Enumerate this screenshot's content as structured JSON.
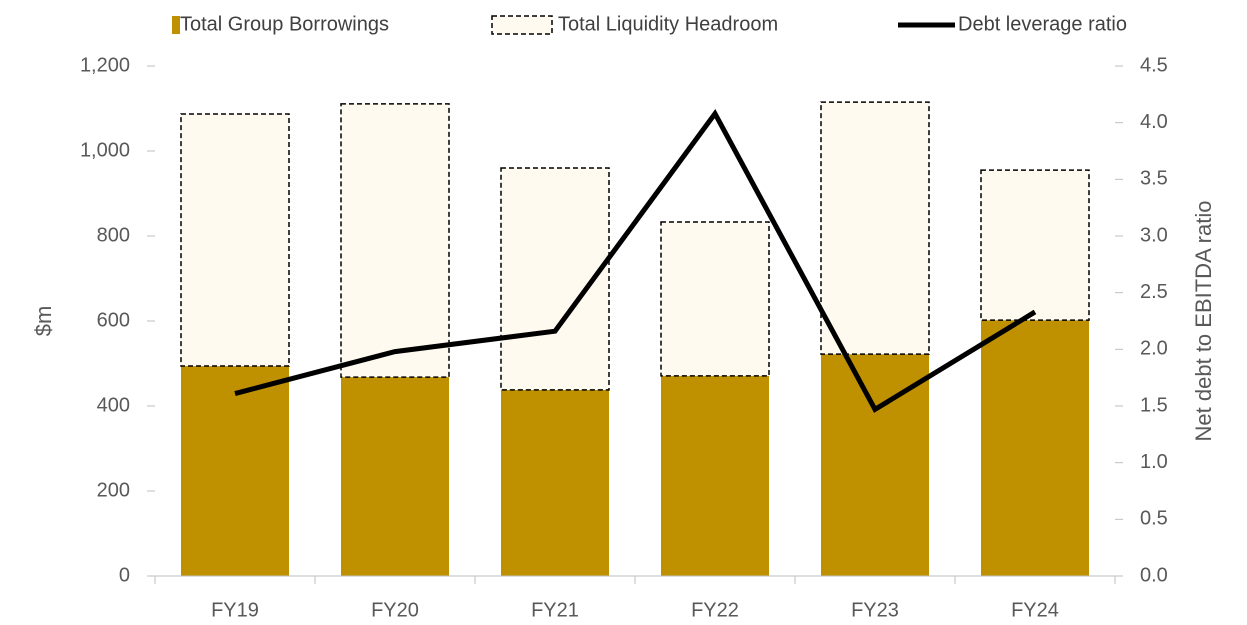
{
  "chart_data": {
    "type": "bar",
    "stacked": true,
    "categories": [
      "FY19",
      "FY20",
      "FY21",
      "FY22",
      "FY23",
      "FY24"
    ],
    "series": [
      {
        "name": "Total Group Borrowings",
        "type": "bar",
        "color": "#bf9000",
        "axis": "y",
        "values": [
          494,
          468,
          438,
          471,
          522,
          602
        ]
      },
      {
        "name": "Total Liquidity Headroom",
        "type": "bar",
        "color": "#fffaf0",
        "border": "dashed",
        "axis": "y",
        "values": [
          593,
          643,
          522,
          362,
          593,
          353
        ]
      },
      {
        "name": "Debt leverage ratio",
        "type": "line",
        "color": "#000000",
        "axis": "y2",
        "values": [
          1.61,
          1.98,
          2.16,
          4.08,
          1.47,
          2.33
        ]
      }
    ],
    "ylabel": "$m",
    "y2label": "Net debt to EBITDA ratio",
    "ylim": [
      0,
      1200
    ],
    "yticks": [
      0,
      200,
      400,
      600,
      800,
      {
        "value": 1000,
        "label": "1,000"
      },
      {
        "value": 1200,
        "label": "1,200"
      }
    ],
    "y2lim": [
      0,
      4.5
    ],
    "y2ticks": [
      {
        "value": 0,
        "label": "0.0"
      },
      0.5,
      {
        "value": 1,
        "label": "1.0"
      },
      1.5,
      {
        "value": 2,
        "label": "2.0"
      },
      2.5,
      {
        "value": 3,
        "label": "3.0"
      },
      3.5,
      {
        "value": 4,
        "label": "4.0"
      },
      4.5
    ],
    "grid": false,
    "legend": "top"
  }
}
